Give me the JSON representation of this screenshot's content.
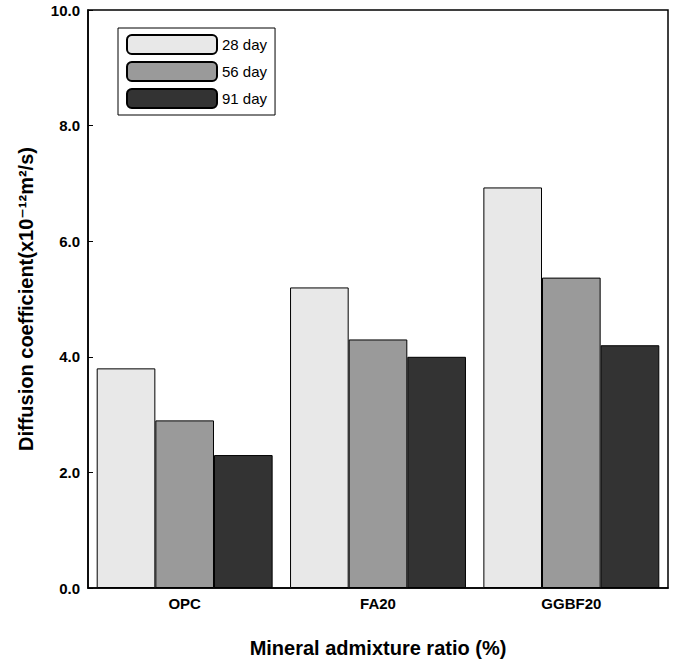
{
  "chart_data": {
    "type": "bar",
    "x_label": "Mineral admixture ratio (%)",
    "y_label": "Diffusion coefficient(x10⁻¹²m²/s)",
    "categories": [
      "OPC",
      "FA20",
      "GGBF20"
    ],
    "series": [
      {
        "name": "28 day",
        "color": "#e8e8e8",
        "values": [
          3.8,
          5.2,
          6.93
        ]
      },
      {
        "name": "56 day",
        "color": "#9a9a9a",
        "values": [
          2.9,
          4.3,
          5.37
        ]
      },
      {
        "name": "91 day",
        "color": "#333333",
        "values": [
          2.3,
          4.0,
          4.2
        ]
      }
    ],
    "ylim": [
      0,
      10
    ],
    "yticks": [
      {
        "value": 0,
        "label": "0.0"
      },
      {
        "value": 2,
        "label": "2.0"
      },
      {
        "value": 4,
        "label": "4.0"
      },
      {
        "value": 6,
        "label": "6.0"
      },
      {
        "value": 8,
        "label": "8.0"
      },
      {
        "value": 10,
        "label": "10.0"
      }
    ],
    "grid": false,
    "legend": "upper left"
  }
}
